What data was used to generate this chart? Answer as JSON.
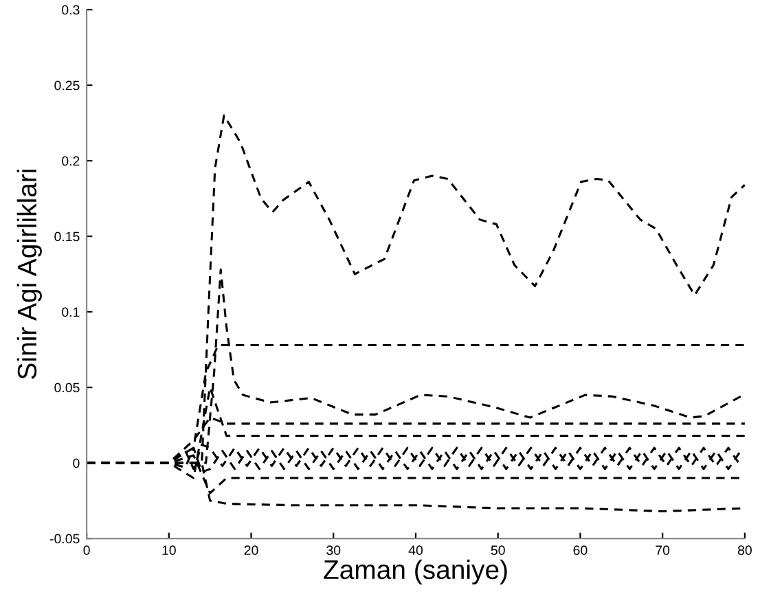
{
  "chart_data": {
    "type": "line",
    "xlabel": "Zaman (saniye)",
    "ylabel": "Sinir Agi Agirliklari",
    "xlim": [
      0,
      80
    ],
    "ylim": [
      -0.05,
      0.3
    ],
    "xticks": [
      0,
      10,
      20,
      30,
      40,
      50,
      60,
      70,
      80
    ],
    "yticks": [
      -0.05,
      0,
      0.05,
      0.1,
      0.15,
      0.2,
      0.25,
      0.3
    ],
    "grid": false,
    "line_style": "dashed",
    "series": [
      {
        "color": "#000000",
        "x": [
          0,
          14,
          14.8,
          15.6,
          16.7,
          18.7,
          21.2,
          22.6,
          23.9,
          27.0,
          29.5,
          32.6,
          36.2,
          39.8,
          42.0,
          43.9,
          47.8,
          49.8,
          52.0,
          54.5,
          56.7,
          60.1,
          62.0,
          63.4,
          67.3,
          69.2,
          71.7,
          73.9,
          76.2,
          78.4,
          80.0
        ],
        "values": [
          0,
          0,
          0.1,
          0.195,
          0.23,
          0.212,
          0.175,
          0.166,
          0.174,
          0.186,
          0.161,
          0.125,
          0.135,
          0.187,
          0.19,
          0.188,
          0.161,
          0.158,
          0.131,
          0.117,
          0.14,
          0.186,
          0.188,
          0.187,
          0.161,
          0.155,
          0.131,
          0.111,
          0.131,
          0.176,
          0.184
        ]
      },
      {
        "color": "#000000",
        "x": [
          0,
          14.5,
          15.5,
          16.3,
          17.0,
          17.9,
          19.0,
          22.3,
          27.3,
          32.3,
          35.1,
          40.6,
          43.9,
          49.5,
          53.9,
          60.6,
          63.9,
          68.9,
          73.4,
          75.1,
          79.5
        ],
        "values": [
          0,
          0,
          0.06,
          0.128,
          0.09,
          0.055,
          0.045,
          0.04,
          0.043,
          0.032,
          0.032,
          0.045,
          0.044,
          0.037,
          0.03,
          0.045,
          0.044,
          0.038,
          0.03,
          0.031,
          0.044
        ]
      },
      {
        "color": "#000000",
        "x": [
          0,
          10,
          13,
          14.5,
          16,
          80
        ],
        "values": [
          0,
          0,
          0.01,
          0.06,
          0.078,
          0.078
        ]
      },
      {
        "color": "#000000",
        "x": [
          0,
          10,
          13,
          15,
          17,
          80
        ],
        "values": [
          0,
          0,
          0.015,
          0.03,
          0.026,
          0.026
        ]
      },
      {
        "color": "#000000",
        "x": [
          0,
          10,
          13,
          15,
          17,
          80
        ],
        "values": [
          0,
          0,
          -0.01,
          0.05,
          0.018,
          0.018
        ]
      },
      {
        "color": "#000000",
        "x": [
          0,
          10,
          13,
          15,
          17,
          80
        ],
        "values": [
          0,
          0,
          0.005,
          -0.02,
          -0.01,
          -0.01
        ]
      },
      {
        "color": "#000000",
        "x": [
          0,
          10,
          14,
          15,
          17,
          25,
          40,
          50,
          60,
          70,
          80
        ],
        "values": [
          0,
          0,
          0,
          -0.025,
          -0.027,
          -0.028,
          -0.028,
          -0.03,
          -0.03,
          -0.032,
          -0.03
        ]
      },
      {
        "color": "#000000",
        "x": [
          0,
          10,
          12,
          13,
          14,
          15,
          16.5,
          18,
          19.5,
          21,
          22.5,
          24,
          25.5,
          27,
          28.5,
          30,
          31.5,
          33,
          34.5,
          36,
          37.5,
          39,
          40.5,
          42,
          43.5,
          45,
          46.5,
          48,
          49.5,
          51,
          52.5,
          54,
          55.5,
          57,
          58.5,
          60,
          61.5,
          63,
          64.5,
          66,
          67.5,
          69,
          70.5,
          72,
          73.5,
          75,
          76.5,
          78,
          79.5
        ],
        "values": [
          0,
          0,
          0.008,
          -0.004,
          0.012,
          0.01,
          -0.002,
          0.01,
          -0.002,
          0.01,
          -0.002,
          0.01,
          -0.002,
          0.01,
          -0.002,
          0.01,
          -0.002,
          0.01,
          -0.002,
          0.01,
          -0.002,
          0.01,
          -0.002,
          0.01,
          -0.002,
          0.01,
          -0.002,
          0.01,
          -0.002,
          0.01,
          -0.002,
          0.01,
          -0.002,
          0.01,
          -0.002,
          0.01,
          -0.002,
          0.01,
          -0.002,
          0.01,
          -0.002,
          0.01,
          -0.002,
          0.01,
          -0.002,
          0.01,
          -0.002,
          0.01,
          -0.002
        ]
      },
      {
        "color": "#000000",
        "x": [
          0,
          10,
          12,
          13,
          14,
          15,
          16.5,
          18,
          19.5,
          21,
          22.5,
          24,
          25.5,
          27,
          28.5,
          30,
          31.5,
          33,
          34.5,
          36,
          37.5,
          39,
          40.5,
          42,
          43.5,
          45,
          46.5,
          48,
          49.5,
          51,
          52.5,
          54,
          55.5,
          57,
          58.5,
          60,
          61.5,
          63,
          64.5,
          66,
          67.5,
          69,
          70.5,
          72,
          73.5,
          75,
          76.5,
          78,
          79.5
        ],
        "values": [
          0,
          0,
          -0.003,
          0.01,
          -0.006,
          -0.004,
          0.008,
          -0.004,
          0.008,
          -0.004,
          0.008,
          -0.004,
          0.008,
          -0.004,
          0.008,
          -0.004,
          0.008,
          -0.004,
          0.008,
          -0.004,
          0.008,
          -0.004,
          0.008,
          -0.004,
          0.008,
          -0.004,
          0.008,
          -0.004,
          0.008,
          -0.004,
          0.008,
          -0.004,
          0.008,
          -0.004,
          0.008,
          -0.004,
          0.008,
          -0.004,
          0.008,
          -0.004,
          0.008,
          -0.004,
          0.008,
          -0.004,
          0.008,
          -0.004,
          0.008,
          -0.004,
          0.008
        ]
      }
    ]
  }
}
